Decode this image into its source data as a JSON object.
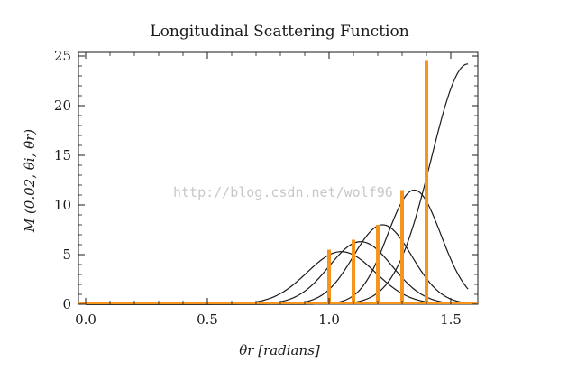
{
  "chart_data": {
    "type": "line",
    "title": "Longitudinal Scattering Function",
    "xlabel": "θr [radians]",
    "ylabel": "M (0.02, θi, θr)",
    "xlim": [
      0,
      1.5708
    ],
    "ylim": [
      0,
      25
    ],
    "x_ticks": [
      0.0,
      0.5,
      1.0,
      1.5
    ],
    "x_tick_labels": [
      "0.0",
      "0.5",
      "1.0",
      "1.5"
    ],
    "y_ticks": [
      0,
      5,
      10,
      15,
      20,
      25
    ],
    "y_tick_labels": [
      "0",
      "5",
      "10",
      "15",
      "20",
      "25"
    ],
    "grid": false,
    "legend": "none",
    "series_color": "#1a1a1a",
    "bar_color": "#f7941d",
    "series": [
      {
        "peak_x": 1.05,
        "peak_y": 5.3,
        "width": 0.14
      },
      {
        "peak_x": 1.13,
        "peak_y": 6.3,
        "width": 0.13
      },
      {
        "peak_x": 1.22,
        "peak_y": 8.0,
        "width": 0.12
      },
      {
        "peak_x": 1.35,
        "peak_y": 11.5,
        "width": 0.11
      },
      {
        "peak_x": 1.57,
        "peak_y": 24.2,
        "width": 0.15
      }
    ],
    "bars": [
      {
        "x": 1.0,
        "y": 5.5
      },
      {
        "x": 1.1,
        "y": 6.5
      },
      {
        "x": 1.2,
        "y": 8.0
      },
      {
        "x": 1.3,
        "y": 11.5
      },
      {
        "x": 1.4,
        "y": 24.5
      }
    ]
  },
  "watermark": "http://blog.csdn.net/wolf96"
}
